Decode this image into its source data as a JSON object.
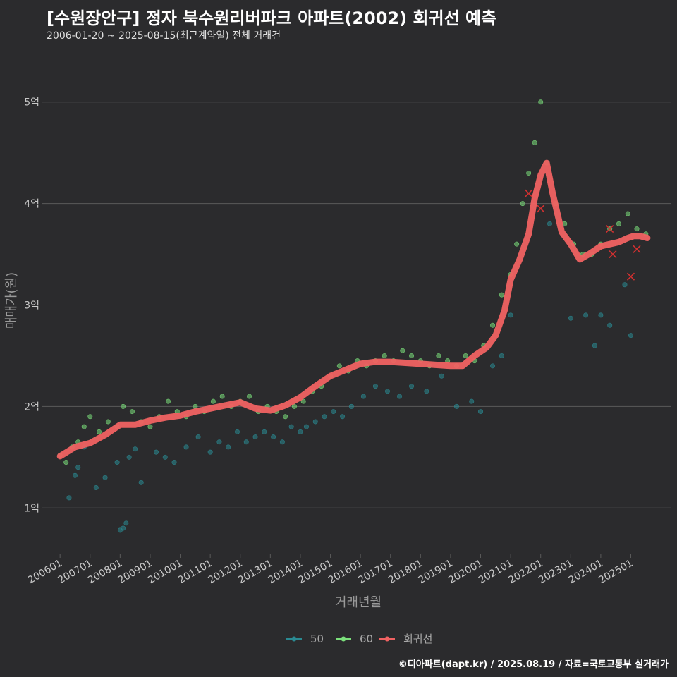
{
  "title": "[수원장안구] 정자 북수원리버파크 아파트(2002) 회귀선 예측",
  "subtitle": "2006-01-20 ~ 2025-08-15(최근계약일) 전체 거래건",
  "caption": "©디아파트(dapt.kr) / 2025.08.19 / 자료=국토교통부 실거래가",
  "colors": {
    "background": "#2b2b2d",
    "grid": "#5a5a5a",
    "series_50": "#2a8a92",
    "series_60": "#7be07b",
    "regression": "#f06262",
    "cancelled": "#d13030"
  },
  "chart_data": {
    "type": "scatter",
    "xlabel": "거래년월",
    "ylabel": "매매가(원)",
    "x_range": [
      2005.55,
      2026.35
    ],
    "ylim": [
      0.55,
      5.45
    ],
    "y_ticks": [
      {
        "value": 1,
        "label": "1억"
      },
      {
        "value": 2,
        "label": "2억"
      },
      {
        "value": 3,
        "label": "3억"
      },
      {
        "value": 4,
        "label": "4억"
      },
      {
        "value": 5,
        "label": "5억"
      }
    ],
    "x_ticks": [
      {
        "value": 2006,
        "label": "200601"
      },
      {
        "value": 2007,
        "label": "200701"
      },
      {
        "value": 2008,
        "label": "200801"
      },
      {
        "value": 2009,
        "label": "200901"
      },
      {
        "value": 2010,
        "label": "201001"
      },
      {
        "value": 2011,
        "label": "201101"
      },
      {
        "value": 2012,
        "label": "201201"
      },
      {
        "value": 2013,
        "label": "201301"
      },
      {
        "value": 2014,
        "label": "201401"
      },
      {
        "value": 2015,
        "label": "201501"
      },
      {
        "value": 2016,
        "label": "201601"
      },
      {
        "value": 2017,
        "label": "201701"
      },
      {
        "value": 2018,
        "label": "201801"
      },
      {
        "value": 2019,
        "label": "201901"
      },
      {
        "value": 2020,
        "label": "202001"
      },
      {
        "value": 2021,
        "label": "202101"
      },
      {
        "value": 2022,
        "label": "202201"
      },
      {
        "value": 2023,
        "label": "202301"
      },
      {
        "value": 2024,
        "label": "202401"
      },
      {
        "value": 2025,
        "label": "202501"
      }
    ],
    "legend": [
      "50",
      "60",
      "회귀선"
    ],
    "series": [
      {
        "name": "50",
        "x": [
          2006.3,
          2006.5,
          2006.6,
          2006.8,
          2007.2,
          2007.5,
          2007.9,
          2008.0,
          2008.1,
          2008.2,
          2008.3,
          2008.5,
          2008.7,
          2009.2,
          2009.5,
          2009.8,
          2010.2,
          2010.6,
          2011.0,
          2011.3,
          2011.6,
          2011.9,
          2012.2,
          2012.5,
          2012.8,
          2013.1,
          2013.4,
          2013.7,
          2014.0,
          2014.2,
          2014.5,
          2014.8,
          2015.1,
          2015.4,
          2015.7,
          2016.1,
          2016.5,
          2016.9,
          2017.3,
          2017.7,
          2018.2,
          2018.7,
          2019.2,
          2019.7,
          2020.0,
          2020.4,
          2020.7,
          2021.0,
          2022.3,
          2023.0,
          2023.5,
          2023.8,
          2024.0,
          2024.3,
          2024.8,
          2025.0
        ],
        "y": [
          1.1,
          1.32,
          1.4,
          1.6,
          1.2,
          1.3,
          1.45,
          0.78,
          0.8,
          0.85,
          1.5,
          1.58,
          1.25,
          1.55,
          1.5,
          1.45,
          1.6,
          1.7,
          1.55,
          1.65,
          1.6,
          1.75,
          1.65,
          1.7,
          1.75,
          1.7,
          1.65,
          1.8,
          1.75,
          1.8,
          1.85,
          1.9,
          1.95,
          1.9,
          2.0,
          2.1,
          2.2,
          2.15,
          2.1,
          2.2,
          2.15,
          2.3,
          2.0,
          2.05,
          1.95,
          2.4,
          2.5,
          2.9,
          3.8,
          2.87,
          2.9,
          2.6,
          2.9,
          2.8,
          3.2,
          2.7
        ]
      },
      {
        "name": "60",
        "x": [
          2006.0,
          2006.2,
          2006.4,
          2006.6,
          2006.8,
          2007.0,
          2007.3,
          2007.6,
          2007.9,
          2008.1,
          2008.4,
          2008.7,
          2009.0,
          2009.3,
          2009.6,
          2009.9,
          2010.2,
          2010.5,
          2010.8,
          2011.1,
          2011.4,
          2011.7,
          2012.0,
          2012.3,
          2012.6,
          2012.9,
          2013.2,
          2013.5,
          2013.8,
          2014.1,
          2014.4,
          2014.7,
          2015.0,
          2015.3,
          2015.6,
          2015.9,
          2016.2,
          2016.5,
          2016.8,
          2017.1,
          2017.4,
          2017.7,
          2018.0,
          2018.3,
          2018.6,
          2018.9,
          2019.2,
          2019.5,
          2019.8,
          2020.1,
          2020.4,
          2020.7,
          2021.0,
          2021.2,
          2021.4,
          2021.6,
          2021.8,
          2022.0,
          2022.2,
          2022.5,
          2022.8,
          2023.1,
          2023.4,
          2023.7,
          2024.0,
          2024.3,
          2024.6,
          2024.9,
          2025.2,
          2025.5
        ],
        "y": [
          1.52,
          1.45,
          1.6,
          1.65,
          1.8,
          1.9,
          1.75,
          1.85,
          1.8,
          2.0,
          1.95,
          1.85,
          1.8,
          1.9,
          2.05,
          1.95,
          1.9,
          2.0,
          1.95,
          2.05,
          2.1,
          2.0,
          2.05,
          2.1,
          1.95,
          2.0,
          1.95,
          1.9,
          2.0,
          2.05,
          2.15,
          2.2,
          2.3,
          2.4,
          2.35,
          2.45,
          2.4,
          2.45,
          2.5,
          2.45,
          2.55,
          2.5,
          2.45,
          2.4,
          2.5,
          2.45,
          2.4,
          2.5,
          2.45,
          2.6,
          2.8,
          3.1,
          3.3,
          3.6,
          4.0,
          4.3,
          4.6,
          5.0,
          4.4,
          4.0,
          3.8,
          3.6,
          3.5,
          3.5,
          3.6,
          3.75,
          3.8,
          3.9,
          3.75,
          3.7
        ]
      },
      {
        "name": "회귀선",
        "x": [
          2006.0,
          2006.5,
          2007.0,
          2007.5,
          2008.0,
          2008.5,
          2009.0,
          2009.5,
          2010.0,
          2010.5,
          2011.0,
          2011.5,
          2012.0,
          2012.5,
          2013.0,
          2013.5,
          2014.0,
          2014.5,
          2015.0,
          2015.5,
          2016.0,
          2016.5,
          2017.0,
          2017.5,
          2018.0,
          2018.5,
          2019.0,
          2019.4,
          2019.8,
          2020.2,
          2020.5,
          2020.8,
          2021.0,
          2021.3,
          2021.6,
          2021.8,
          2022.0,
          2022.2,
          2022.4,
          2022.7,
          2023.0,
          2023.3,
          2023.6,
          2024.0,
          2024.3,
          2024.6,
          2024.9,
          2025.1,
          2025.3,
          2025.55
        ],
        "y": [
          1.51,
          1.6,
          1.64,
          1.72,
          1.82,
          1.82,
          1.86,
          1.89,
          1.91,
          1.95,
          1.98,
          2.01,
          2.04,
          1.98,
          1.96,
          2.01,
          2.09,
          2.2,
          2.3,
          2.36,
          2.42,
          2.44,
          2.44,
          2.43,
          2.42,
          2.41,
          2.4,
          2.4,
          2.5,
          2.58,
          2.7,
          2.95,
          3.25,
          3.45,
          3.7,
          4.05,
          4.28,
          4.4,
          4.1,
          3.72,
          3.6,
          3.45,
          3.5,
          3.58,
          3.6,
          3.62,
          3.66,
          3.68,
          3.68,
          3.66
        ]
      },
      {
        "name": "cancelled",
        "x": [
          2021.6,
          2022.0,
          2024.3,
          2024.4,
          2025.0,
          2025.2
        ],
        "y": [
          4.1,
          3.95,
          3.75,
          3.5,
          3.28,
          3.55
        ]
      }
    ]
  }
}
